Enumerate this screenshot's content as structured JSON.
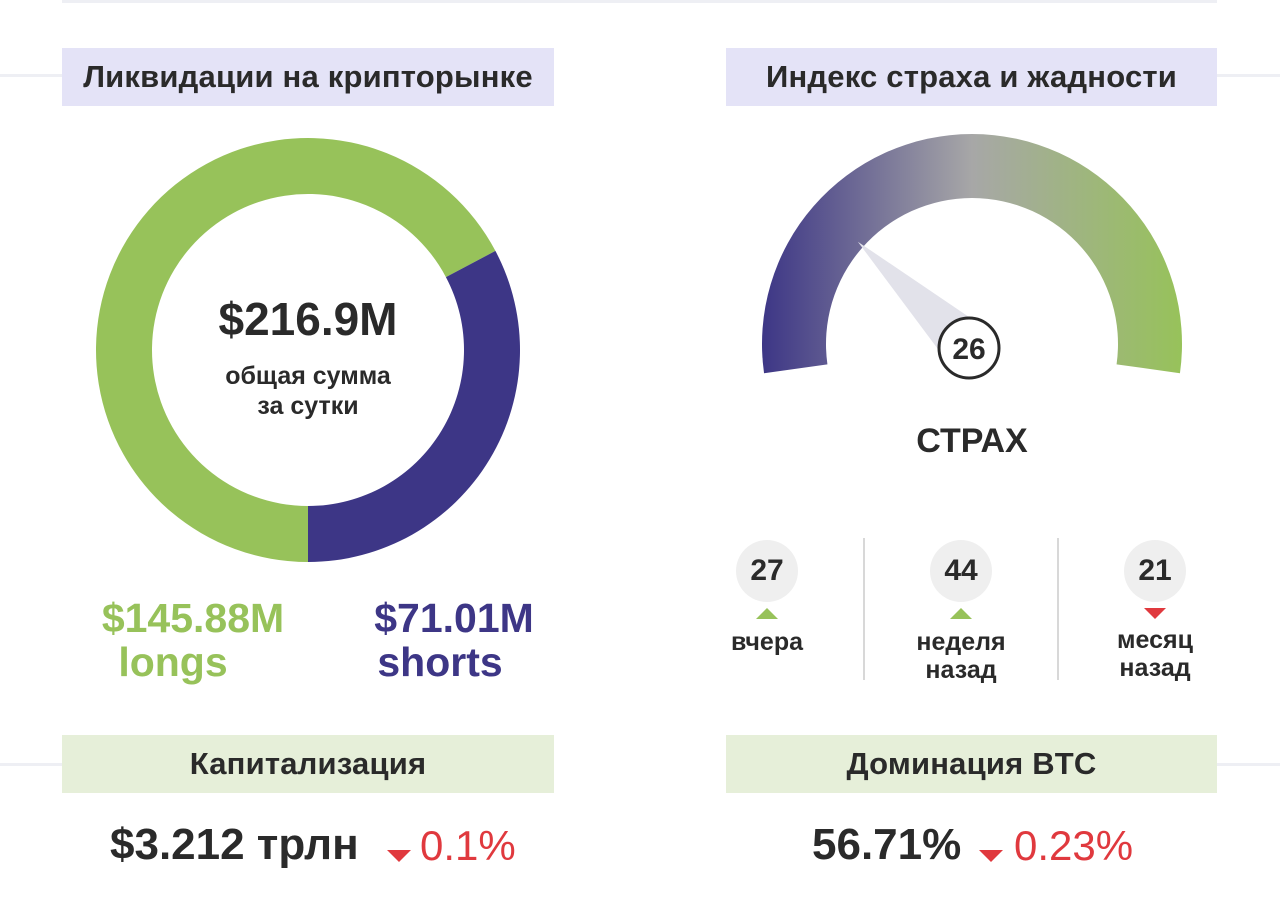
{
  "colors": {
    "green": "#97c25a",
    "purple": "#3d3686",
    "red": "#e0393e",
    "dark": "#2a2a2a"
  },
  "liquidations": {
    "title": "Ликвидации на крипторынке",
    "total": "$216.9M",
    "total_caption_line1": "общая сумма",
    "total_caption_line2": "за сутки",
    "longs_value": "$145.88M",
    "longs_label": "longs",
    "shorts_value": "$71.01M",
    "shorts_label": "shorts",
    "longs_amount": 145.88,
    "shorts_amount": 71.01
  },
  "fear_greed": {
    "title": "Индекс страха и жадности",
    "value": "26",
    "index": 26,
    "state": "СТРАХ",
    "history": [
      {
        "value": "27",
        "label_line1": "вчера",
        "label_line2": "",
        "trend": "up",
        "trend_icon": "triangle-up-icon"
      },
      {
        "value": "44",
        "label_line1": "неделя",
        "label_line2": "назад",
        "trend": "up",
        "trend_icon": "triangle-up-icon"
      },
      {
        "value": "21",
        "label_line1": "месяц",
        "label_line2": "назад",
        "trend": "down",
        "trend_icon": "triangle-down-icon"
      }
    ]
  },
  "capitalization": {
    "title": "Капитализация",
    "value": "$3.212 трлн",
    "change": "0.1%",
    "trend_icon": "triangle-down-icon"
  },
  "btc_dominance": {
    "title": "Доминация BTC",
    "value": "56.71%",
    "change": "0.23%",
    "trend_icon": "triangle-down-icon"
  }
}
